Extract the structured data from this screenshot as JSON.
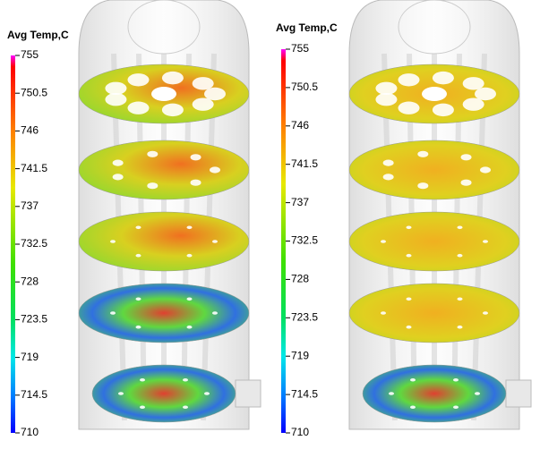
{
  "panels": [
    {
      "legend_title": "Avg Temp,C",
      "ticks": [
        755,
        750.5,
        746,
        741.5,
        737,
        732.5,
        728,
        723.5,
        719,
        714.5,
        710
      ]
    },
    {
      "legend_title": "Avg Temp,C",
      "ticks": [
        755,
        750.5,
        746,
        741.5,
        737,
        732.5,
        728,
        723.5,
        719,
        714.5,
        710
      ]
    }
  ]
}
